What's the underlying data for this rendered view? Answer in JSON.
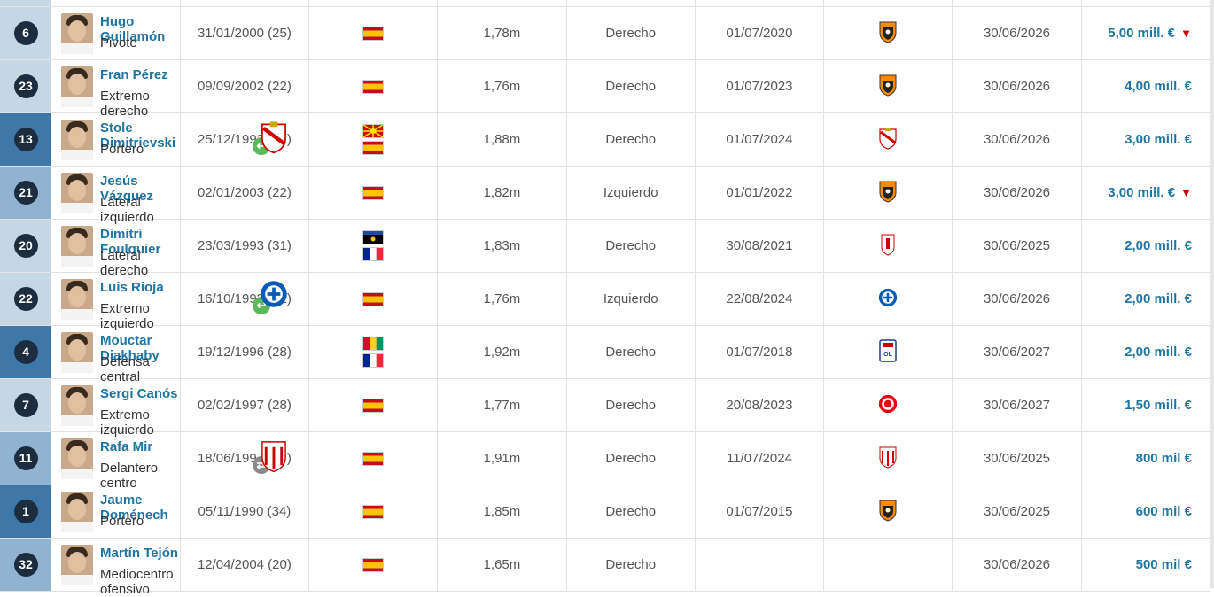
{
  "players": [
    {
      "number": "6",
      "name": "Hugo Guillamón",
      "position": "Pivote",
      "birth": "31/01/2000 (25)",
      "flags": [
        "es"
      ],
      "height": "1,78m",
      "foot": "Derecho",
      "joined": "01/07/2020",
      "from": "valencia",
      "contract": "30/06/2026",
      "value": "5,00 mill. €",
      "down": true
    },
    {
      "number": "23",
      "name": "Fran Pérez",
      "position": "Extremo derecho",
      "birth": "09/09/2002 (22)",
      "flags": [
        "es"
      ],
      "height": "1,76m",
      "foot": "Derecho",
      "joined": "01/07/2023",
      "from": "valencia",
      "contract": "30/06/2026",
      "value": "4,00 mill. €",
      "down": false
    },
    {
      "number": "13",
      "name": "Stole Dimitrievski",
      "position": "Portero",
      "birth": "25/12/1993 (31)",
      "flags": [
        "mk",
        "es"
      ],
      "height": "1,88m",
      "foot": "Derecho",
      "joined": "01/07/2024",
      "from": "rayo",
      "contract": "30/06/2026",
      "value": "3,00 mill. €",
      "down": false,
      "loan": "in",
      "loanclub": "rayo"
    },
    {
      "number": "21",
      "name": "Jesús Vázquez",
      "position": "Lateral izquierdo",
      "birth": "02/01/2003 (22)",
      "flags": [
        "es"
      ],
      "height": "1,82m",
      "foot": "Izquierdo",
      "joined": "01/01/2022",
      "from": "valencia",
      "contract": "30/06/2026",
      "value": "3,00 mill. €",
      "down": true
    },
    {
      "number": "20",
      "name": "Dimitri Foulquier",
      "position": "Lateral derecho",
      "birth": "23/03/1993 (31)",
      "flags": [
        "gp",
        "fr"
      ],
      "height": "1,83m",
      "foot": "Derecho",
      "joined": "30/08/2021",
      "from": "granada",
      "contract": "30/06/2025",
      "value": "2,00 mill. €",
      "down": false
    },
    {
      "number": "22",
      "name": "Luis Rioja",
      "position": "Extremo izquierdo",
      "birth": "16/10/1993 (31)",
      "flags": [
        "es"
      ],
      "height": "1,76m",
      "foot": "Izquierdo",
      "joined": "22/08/2024",
      "from": "alaves",
      "contract": "30/06/2026",
      "value": "2,00 mill. €",
      "down": false,
      "loan": "in",
      "loanclub": "alaves"
    },
    {
      "number": "4",
      "name": "Mouctar Diakhaby",
      "position": "Defensa central",
      "birth": "19/12/1996 (28)",
      "flags": [
        "gn",
        "fr"
      ],
      "height": "1,92m",
      "foot": "Derecho",
      "joined": "01/07/2018",
      "from": "lyon",
      "contract": "30/06/2027",
      "value": "2,00 mill. €",
      "down": false
    },
    {
      "number": "7",
      "name": "Sergi Canós",
      "position": "Extremo izquierdo",
      "birth": "02/02/1997 (28)",
      "flags": [
        "es"
      ],
      "height": "1,77m",
      "foot": "Derecho",
      "joined": "20/08/2023",
      "from": "brentford",
      "contract": "30/06/2027",
      "value": "1,50 mill. €",
      "down": false
    },
    {
      "number": "11",
      "name": "Rafa Mir",
      "position": "Delantero centro",
      "birth": "18/06/1997 (27)",
      "flags": [
        "es"
      ],
      "height": "1,91m",
      "foot": "Derecho",
      "joined": "11/07/2024",
      "from": "sevilla",
      "contract": "30/06/2025",
      "value": "800 mil €",
      "down": false,
      "loan": "swap",
      "loanclub": "sevilla"
    },
    {
      "number": "1",
      "name": "Jaume Doménech",
      "position": "Portero",
      "birth": "05/11/1990 (34)",
      "flags": [
        "es"
      ],
      "height": "1,85m",
      "foot": "Derecho",
      "joined": "01/07/2015",
      "from": "valencia",
      "contract": "30/06/2025",
      "value": "600 mil €",
      "down": false
    },
    {
      "number": "32",
      "name": "Martín Tejón",
      "position": "Mediocentro ofensivo",
      "birth": "12/04/2004 (20)",
      "flags": [
        "es"
      ],
      "height": "1,65m",
      "foot": "Derecho",
      "joined": "",
      "from": "",
      "contract": "30/06/2026",
      "value": "500 mil €",
      "down": false
    }
  ],
  "colors": {
    "link": "#1d75a3",
    "number_circle": "#1d2c3f",
    "down_arrow": "#c00000"
  }
}
